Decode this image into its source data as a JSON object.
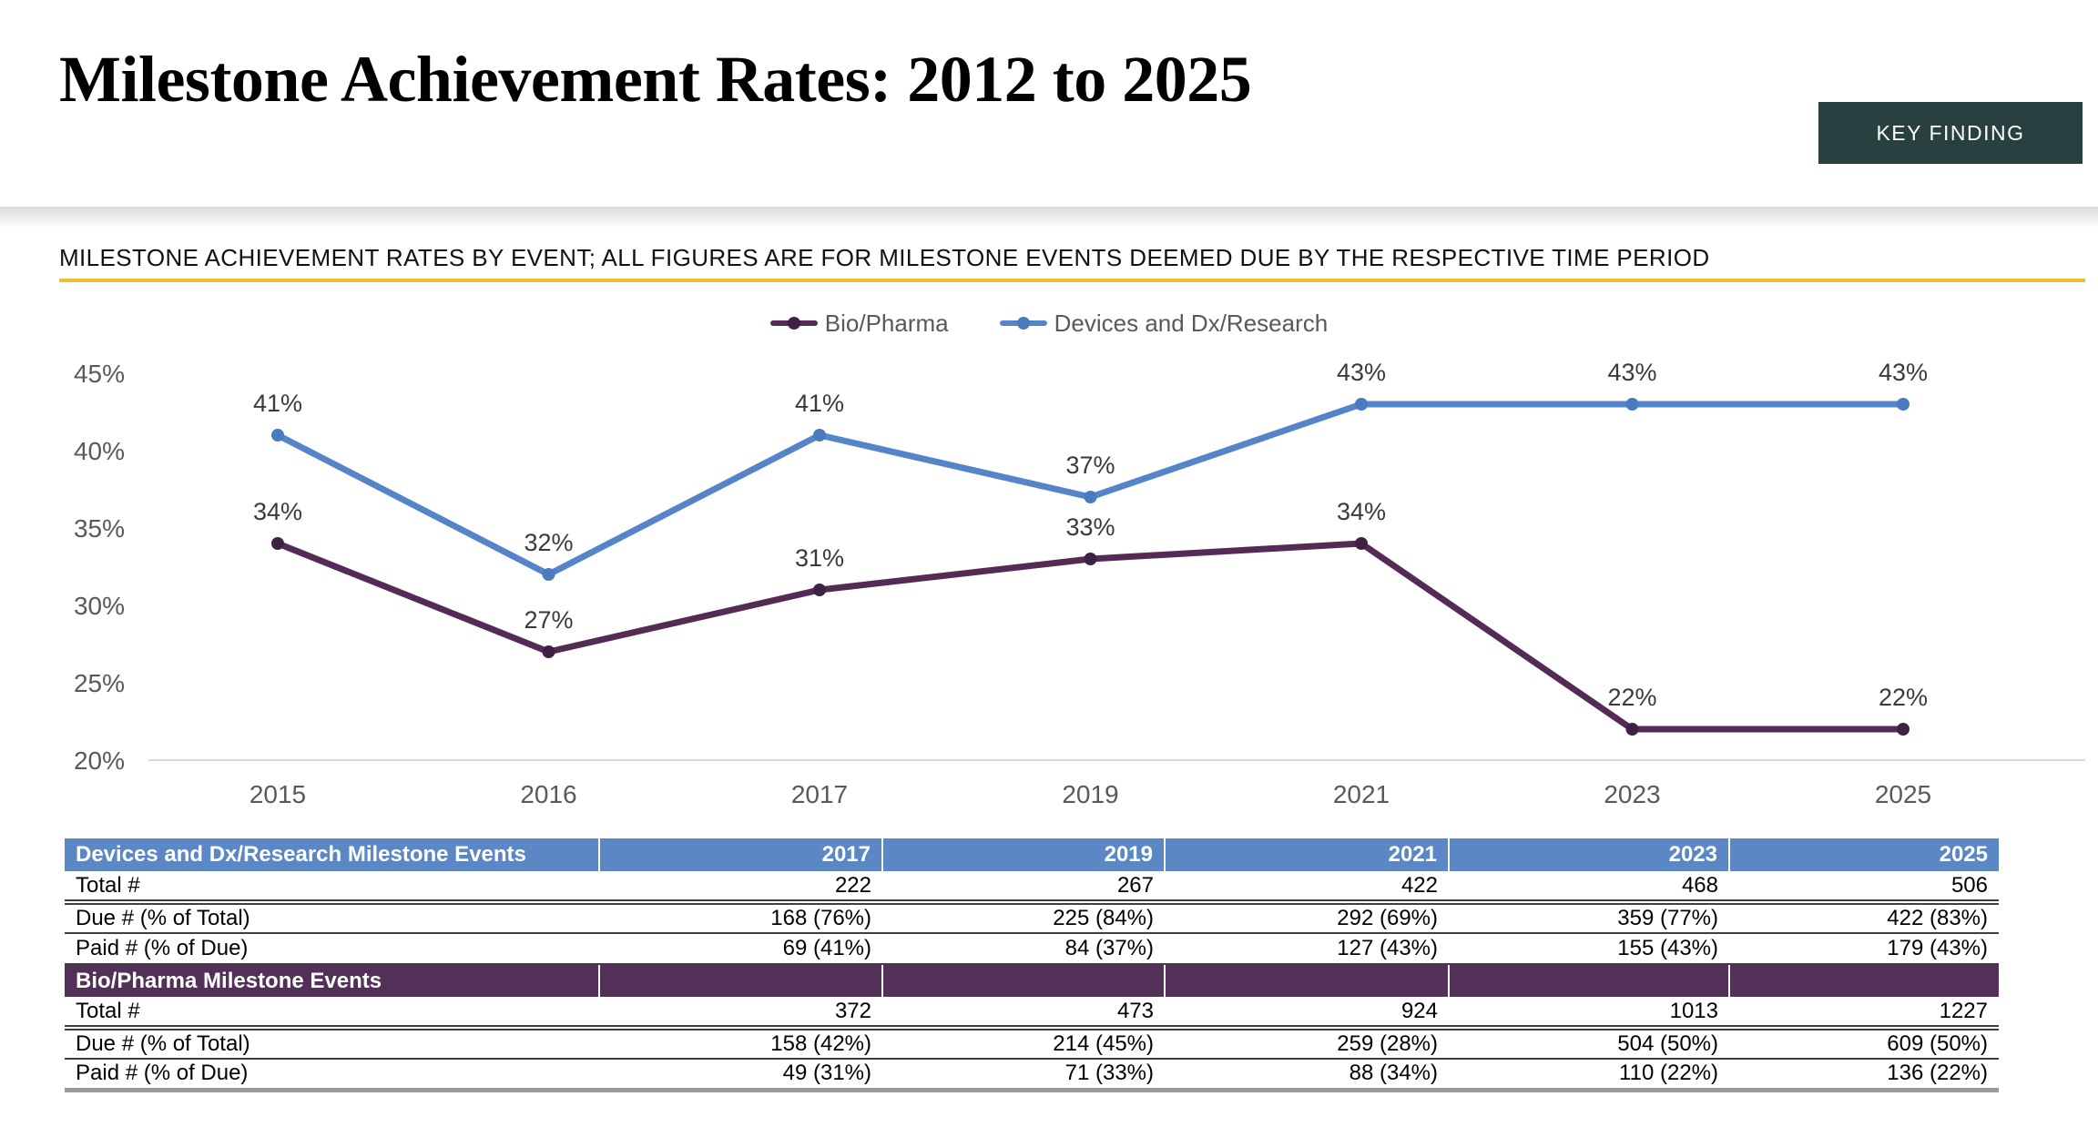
{
  "header": {
    "title": "Milestone Achievement Rates: 2012 to 2025",
    "key_finding_label": "KEY FINDING"
  },
  "subtitle": {
    "text": "MILESTONE ACHIEVEMENT RATES BY EVENT; ALL FIGURES ARE FOR MILESTONE EVENTS DEEMED DUE BY THE RESPECTIVE TIME PERIOD"
  },
  "chart_data": {
    "type": "line",
    "title": "",
    "categories": [
      "2015",
      "2016",
      "2017",
      "2019",
      "2021",
      "2023",
      "2025"
    ],
    "series": [
      {
        "name": "Bio/Pharma",
        "values": [
          34,
          27,
          31,
          33,
          34,
          22,
          22
        ],
        "color": "#532B55",
        "marker_color": "#3F2144",
        "data_labels": [
          "34%",
          "27%",
          "31%",
          "33%",
          "34%",
          "22%",
          "22%"
        ]
      },
      {
        "name": "Devices and Dx/Research",
        "values": [
          41,
          32,
          41,
          37,
          43,
          43,
          43
        ],
        "color": "#5585C8",
        "marker_color": "#4A7BC0",
        "data_labels": [
          "41%",
          "32%",
          "41%",
          "37%",
          "43%",
          "43%",
          "43%"
        ]
      }
    ],
    "yticks": [
      "45%",
      "40%",
      "35%",
      "30%",
      "25%",
      "20%"
    ],
    "ytick_values": [
      45,
      40,
      35,
      30,
      25,
      20
    ],
    "ylim": [
      20,
      45
    ],
    "grid": "baseline-only",
    "legend_position": "top-center",
    "xlabel": "",
    "ylabel": ""
  },
  "table": {
    "year_columns": [
      "2017",
      "2019",
      "2021",
      "2023",
      "2025"
    ],
    "sections": [
      {
        "header": "Devices and Dx/Research Milestone Events",
        "header_color": "#5B87C5",
        "rows": [
          {
            "label": "Total #",
            "values": [
              "222",
              "267",
              "422",
              "468",
              "506"
            ]
          },
          {
            "label": "Due # (% of Total)",
            "values": [
              "168 (76%)",
              "225 (84%)",
              "292 (69%)",
              "359 (77%)",
              "422 (83%)"
            ]
          },
          {
            "label": "Paid # (% of Due)",
            "values": [
              "69 (41%)",
              "84 (37%)",
              "127 (43%)",
              "155 (43%)",
              "179 (43%)"
            ]
          }
        ]
      },
      {
        "header": "Bio/Pharma Milestone Events",
        "header_color": "#533058",
        "rows": [
          {
            "label": "Total #",
            "values": [
              "372",
              "473",
              "924",
              "1013",
              "1227"
            ]
          },
          {
            "label": "Due # (% of Total)",
            "values": [
              "158 (42%)",
              "214 (45%)",
              "259 (28%)",
              "504 (50%)",
              "609 (50%)"
            ]
          },
          {
            "label": "Paid # (% of Due)",
            "values": [
              "49 (31%)",
              "71 (33%)",
              "88 (34%)",
              "110 (22%)",
              "136 (22%)"
            ]
          }
        ]
      }
    ]
  },
  "colors": {
    "accent_gold": "#EFBE31",
    "key_finding_bg": "#28403F",
    "axis_text": "#595959",
    "data_label_text": "#3A3A3A",
    "gridline": "#D9D9D9",
    "row_border": "#3F3F3F",
    "table_bottom_border": "#9A9A9A"
  }
}
